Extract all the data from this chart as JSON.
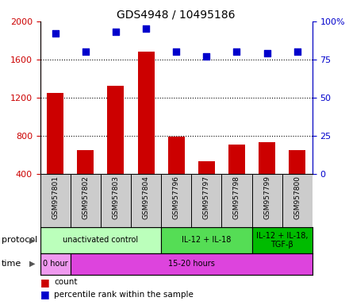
{
  "title": "GDS4948 / 10495186",
  "samples": [
    "GSM957801",
    "GSM957802",
    "GSM957803",
    "GSM957804",
    "GSM957796",
    "GSM957797",
    "GSM957798",
    "GSM957799",
    "GSM957800"
  ],
  "counts": [
    1250,
    650,
    1320,
    1680,
    790,
    530,
    710,
    730,
    650
  ],
  "percentile_ranks": [
    92,
    80,
    93,
    95,
    80,
    77,
    80,
    79,
    80
  ],
  "ylim_left": [
    400,
    2000
  ],
  "ylim_right": [
    0,
    100
  ],
  "yticks_left": [
    400,
    800,
    1200,
    1600,
    2000
  ],
  "yticks_right": [
    0,
    25,
    50,
    75,
    100
  ],
  "ytick_right_labels": [
    "0",
    "25",
    "50",
    "75",
    "100%"
  ],
  "bar_color": "#cc0000",
  "dot_color": "#0000cc",
  "protocol_groups": [
    {
      "label": "unactivated control",
      "start": 0,
      "end": 4,
      "color": "#bbffbb"
    },
    {
      "label": "IL-12 + IL-18",
      "start": 4,
      "end": 7,
      "color": "#55dd55"
    },
    {
      "label": "IL-12 + IL-18,\nTGF-β",
      "start": 7,
      "end": 9,
      "color": "#00bb00"
    }
  ],
  "time_groups": [
    {
      "label": "0 hour",
      "start": 0,
      "end": 1,
      "color": "#ee99ee"
    },
    {
      "label": "15-20 hours",
      "start": 1,
      "end": 9,
      "color": "#dd44dd"
    }
  ],
  "left_axis_color": "#cc0000",
  "right_axis_color": "#0000cc",
  "sample_box_color": "#cccccc",
  "bar_width": 0.55,
  "dot_size": 40,
  "title_fontsize": 10,
  "axis_fontsize": 8,
  "sample_fontsize": 6.5,
  "legend_fontsize": 7.5,
  "row_label_fontsize": 8,
  "protocol_fontsize": 7,
  "time_fontsize": 7
}
